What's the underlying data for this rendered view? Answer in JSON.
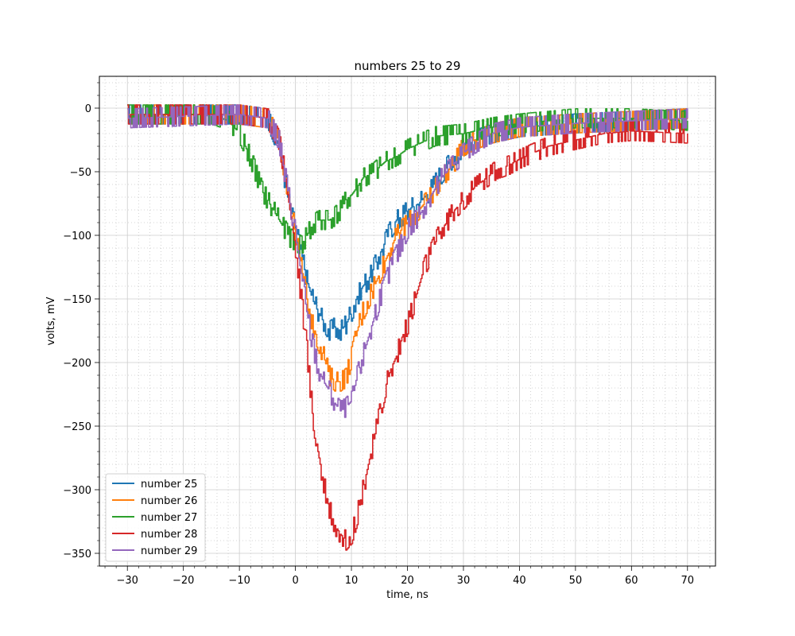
{
  "chart_data": {
    "type": "line",
    "title": "numbers 25 to 29",
    "xlabel": "time, ns",
    "ylabel": "volts, mV",
    "xlim": [
      -35,
      75
    ],
    "ylim": [
      -360,
      25
    ],
    "xticks": [
      -30,
      -20,
      -10,
      0,
      10,
      20,
      30,
      40,
      50,
      60,
      70
    ],
    "yticks": [
      0,
      -50,
      -100,
      -150,
      -200,
      -250,
      -300,
      -350
    ],
    "grid": {
      "major": true,
      "minor": true,
      "minor_style": "dotted"
    },
    "legend_position": "bottom-left",
    "series": [
      {
        "name": "number 25",
        "color": "#1f77b4",
        "points": [
          [
            -30,
            -5
          ],
          [
            -10,
            -5
          ],
          [
            -5,
            -8
          ],
          [
            -3,
            -30
          ],
          [
            -2,
            -55
          ],
          [
            -1,
            -80
          ],
          [
            0,
            -95
          ],
          [
            1,
            -115
          ],
          [
            2,
            -135
          ],
          [
            3,
            -150
          ],
          [
            4,
            -160
          ],
          [
            5,
            -168
          ],
          [
            6,
            -175
          ],
          [
            7,
            -172
          ],
          [
            8,
            -175
          ],
          [
            9,
            -170
          ],
          [
            10,
            -160
          ],
          [
            11,
            -148
          ],
          [
            12,
            -140
          ],
          [
            13,
            -135
          ],
          [
            14,
            -125
          ],
          [
            15,
            -115
          ],
          [
            16,
            -105
          ],
          [
            17,
            -95
          ],
          [
            18,
            -88
          ],
          [
            19,
            -85
          ],
          [
            20,
            -80
          ],
          [
            22,
            -75
          ],
          [
            24,
            -65
          ],
          [
            26,
            -52
          ],
          [
            28,
            -40
          ],
          [
            30,
            -30
          ],
          [
            32,
            -25
          ],
          [
            35,
            -20
          ],
          [
            40,
            -15
          ],
          [
            50,
            -12
          ],
          [
            60,
            -10
          ],
          [
            70,
            -8
          ]
        ]
      },
      {
        "name": "number 26",
        "color": "#ff7f0e",
        "points": [
          [
            -30,
            -5
          ],
          [
            -10,
            -5
          ],
          [
            -5,
            -8
          ],
          [
            -3,
            -25
          ],
          [
            -2,
            -50
          ],
          [
            -1,
            -75
          ],
          [
            0,
            -100
          ],
          [
            1,
            -125
          ],
          [
            2,
            -150
          ],
          [
            3,
            -170
          ],
          [
            4,
            -183
          ],
          [
            5,
            -195
          ],
          [
            6,
            -210
          ],
          [
            7,
            -215
          ],
          [
            8,
            -215
          ],
          [
            9,
            -212
          ],
          [
            10,
            -195
          ],
          [
            11,
            -175
          ],
          [
            12,
            -160
          ],
          [
            13,
            -150
          ],
          [
            14,
            -140
          ],
          [
            15,
            -130
          ],
          [
            16,
            -120
          ],
          [
            17,
            -110
          ],
          [
            18,
            -100
          ],
          [
            19,
            -95
          ],
          [
            20,
            -90
          ],
          [
            22,
            -80
          ],
          [
            24,
            -70
          ],
          [
            26,
            -55
          ],
          [
            28,
            -45
          ],
          [
            30,
            -30
          ],
          [
            32,
            -25
          ],
          [
            35,
            -20
          ],
          [
            40,
            -15
          ],
          [
            50,
            -12
          ],
          [
            60,
            -10
          ],
          [
            70,
            -8
          ]
        ]
      },
      {
        "name": "number 27",
        "color": "#2ca02c",
        "points": [
          [
            -30,
            -5
          ],
          [
            -15,
            -5
          ],
          [
            -12,
            -10
          ],
          [
            -10,
            -20
          ],
          [
            -8,
            -40
          ],
          [
            -6,
            -65
          ],
          [
            -4,
            -80
          ],
          [
            -2,
            -95
          ],
          [
            -1,
            -102
          ],
          [
            0,
            -105
          ],
          [
            1,
            -108
          ],
          [
            2,
            -100
          ],
          [
            3,
            -92
          ],
          [
            4,
            -88
          ],
          [
            5,
            -88
          ],
          [
            6,
            -88
          ],
          [
            7,
            -85
          ],
          [
            8,
            -80
          ],
          [
            9,
            -72
          ],
          [
            10,
            -68
          ],
          [
            11,
            -62
          ],
          [
            12,
            -55
          ],
          [
            14,
            -50
          ],
          [
            16,
            -42
          ],
          [
            18,
            -38
          ],
          [
            20,
            -32
          ],
          [
            22,
            -28
          ],
          [
            25,
            -22
          ],
          [
            30,
            -20
          ],
          [
            35,
            -15
          ],
          [
            40,
            -12
          ],
          [
            50,
            -8
          ],
          [
            60,
            -8
          ],
          [
            70,
            -10
          ]
        ]
      },
      {
        "name": "number 28",
        "color": "#d62728",
        "points": [
          [
            -30,
            -5
          ],
          [
            -10,
            -5
          ],
          [
            -5,
            -8
          ],
          [
            -3,
            -25
          ],
          [
            -2,
            -50
          ],
          [
            -1,
            -80
          ],
          [
            0,
            -110
          ],
          [
            1,
            -150
          ],
          [
            2,
            -190
          ],
          [
            3,
            -240
          ],
          [
            4,
            -270
          ],
          [
            5,
            -295
          ],
          [
            6,
            -315
          ],
          [
            7,
            -328
          ],
          [
            8,
            -335
          ],
          [
            9,
            -340
          ],
          [
            10,
            -335
          ],
          [
            11,
            -320
          ],
          [
            12,
            -300
          ],
          [
            13,
            -280
          ],
          [
            14,
            -260
          ],
          [
            15,
            -240
          ],
          [
            16,
            -220
          ],
          [
            17,
            -205
          ],
          [
            18,
            -195
          ],
          [
            19,
            -180
          ],
          [
            20,
            -170
          ],
          [
            21,
            -155
          ],
          [
            22,
            -140
          ],
          [
            23,
            -125
          ],
          [
            24,
            -115
          ],
          [
            25,
            -105
          ],
          [
            26,
            -95
          ],
          [
            27,
            -90
          ],
          [
            28,
            -82
          ],
          [
            30,
            -72
          ],
          [
            32,
            -62
          ],
          [
            34,
            -55
          ],
          [
            36,
            -48
          ],
          [
            38,
            -45
          ],
          [
            40,
            -40
          ],
          [
            45,
            -30
          ],
          [
            50,
            -25
          ],
          [
            55,
            -20
          ],
          [
            60,
            -18
          ],
          [
            70,
            -20
          ]
        ]
      },
      {
        "name": "number 29",
        "color": "#9467bd",
        "points": [
          [
            -30,
            -8
          ],
          [
            -10,
            -5
          ],
          [
            -5,
            -8
          ],
          [
            -3,
            -25
          ],
          [
            -2,
            -50
          ],
          [
            -1,
            -75
          ],
          [
            0,
            -100
          ],
          [
            1,
            -130
          ],
          [
            2,
            -160
          ],
          [
            3,
            -185
          ],
          [
            4,
            -205
          ],
          [
            5,
            -215
          ],
          [
            6,
            -222
          ],
          [
            7,
            -232
          ],
          [
            8,
            -238
          ],
          [
            9,
            -235
          ],
          [
            10,
            -230
          ],
          [
            11,
            -210
          ],
          [
            12,
            -195
          ],
          [
            13,
            -180
          ],
          [
            14,
            -165
          ],
          [
            15,
            -150
          ],
          [
            16,
            -138
          ],
          [
            17,
            -125
          ],
          [
            18,
            -115
          ],
          [
            19,
            -105
          ],
          [
            20,
            -95
          ],
          [
            22,
            -85
          ],
          [
            24,
            -70
          ],
          [
            26,
            -55
          ],
          [
            28,
            -45
          ],
          [
            30,
            -35
          ],
          [
            32,
            -28
          ],
          [
            35,
            -20
          ],
          [
            40,
            -15
          ],
          [
            50,
            -12
          ],
          [
            60,
            -10
          ],
          [
            70,
            -8
          ]
        ]
      }
    ]
  }
}
